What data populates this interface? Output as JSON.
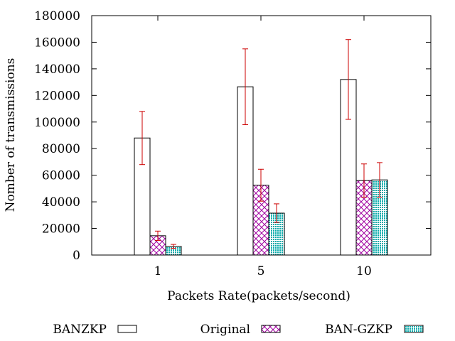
{
  "chart_data": {
    "type": "bar",
    "categories": [
      "1",
      "5",
      "10"
    ],
    "xlabel": "Packets Rate(packets/second)",
    "ylabel": "Nomber of transmissions",
    "ylim": [
      0,
      180000
    ],
    "yticks": [
      0,
      20000,
      40000,
      60000,
      80000,
      100000,
      120000,
      140000,
      160000,
      180000
    ],
    "grid": false,
    "legend_position": "bottom",
    "error_bar_color": "#cc0000",
    "series": [
      {
        "name": "BANZKP",
        "values": [
          88000,
          126500,
          132000
        ],
        "errors": [
          20000,
          28500,
          30000
        ],
        "pattern": "empty",
        "color": "#000000"
      },
      {
        "name": "Original",
        "values": [
          14500,
          52500,
          56000
        ],
        "errors": [
          3500,
          12000,
          12500
        ],
        "pattern": "crosshatch",
        "color": "#a000a0"
      },
      {
        "name": "BAN-GZKP",
        "values": [
          6500,
          31500,
          56500
        ],
        "errors": [
          1500,
          7000,
          13000
        ],
        "pattern": "dots",
        "color": "#00a0a0"
      }
    ]
  }
}
